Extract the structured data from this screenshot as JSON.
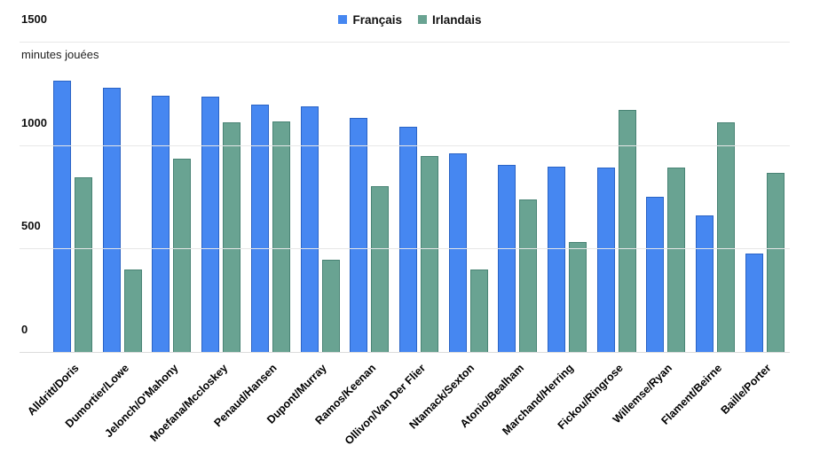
{
  "chart_data": {
    "type": "bar",
    "title": "",
    "ylabel": "minutes jouées",
    "xlabel": "",
    "ylim": [
      0,
      1500
    ],
    "yticks": [
      0,
      500,
      1000,
      1500
    ],
    "grid": true,
    "legend_position": "top",
    "categories": [
      "Alldritt/Doris",
      "Dumortier/Lowe",
      "Jelonch/O'Mahony",
      "Moefana/Mccloskey",
      "Penaud/Hansen",
      "Dupont/Murray",
      "Ramos/Keenan",
      "Ollivon/Van Der Flier",
      "Ntamack/Sexton",
      "Atonio/Bealham",
      "Marchand/Herring",
      "Fickou/Ringrose",
      "Willemse/Ryan",
      "Flament/Beirne",
      "Baille/Porter"
    ],
    "series": [
      {
        "name": "Français",
        "color": "#4687f1",
        "values": [
          1315,
          1280,
          1245,
          1240,
          1200,
          1190,
          1135,
          1095,
          965,
          910,
          900,
          895,
          755,
          665,
          480
        ]
      },
      {
        "name": "Irlandais",
        "color": "#69a392",
        "values": [
          850,
          405,
          940,
          1115,
          1120,
          450,
          805,
          950,
          405,
          740,
          535,
          1175,
          895,
          1115,
          870
        ]
      }
    ]
  }
}
